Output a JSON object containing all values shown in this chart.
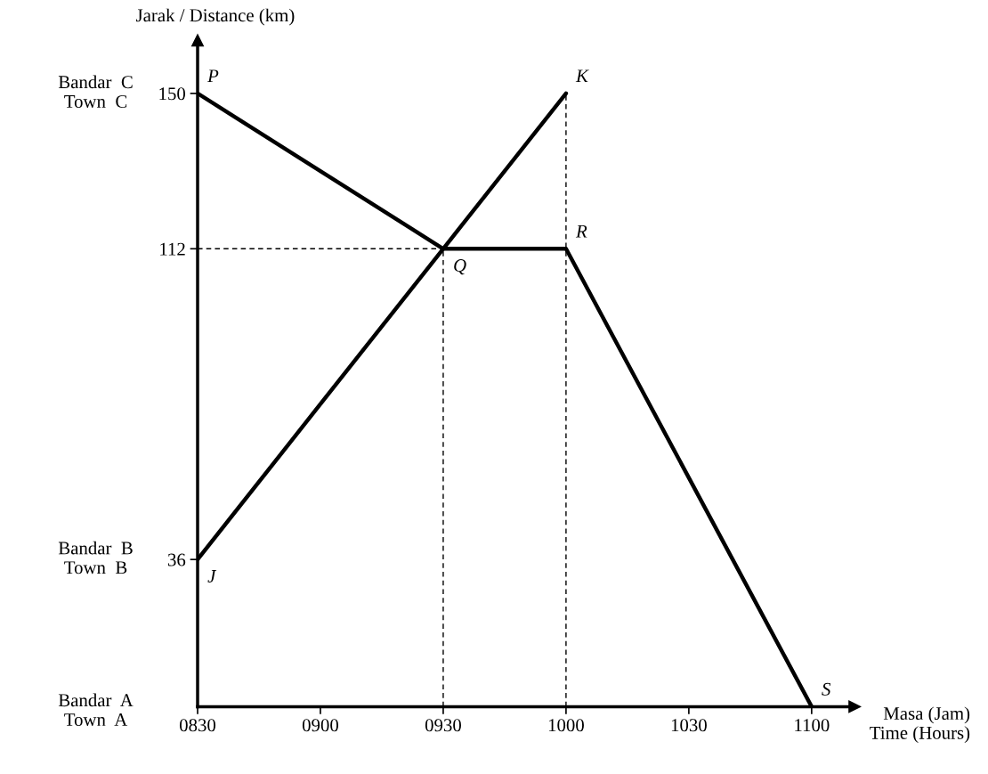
{
  "chart_data": {
    "type": "line",
    "xlabel": "Masa (Jam)\nTime (Hours)",
    "ylabel": "Jarak / Distance (km)",
    "categories": [
      "0830",
      "0900",
      "0930",
      "1000",
      "1030",
      "1100"
    ],
    "ylim": [
      0,
      163
    ],
    "yticks": [
      36,
      112,
      150
    ],
    "grid": false,
    "marker": "none",
    "line_style": "solid",
    "series": [
      {
        "color": "#000000",
        "values": [
          150,
          131,
          112,
          112,
          56,
          0
        ]
      },
      {
        "color": "#000000",
        "values": [
          36,
          74,
          112,
          150,
          null,
          null
        ]
      }
    ],
    "ref_lines": [
      {
        "axis": "y",
        "value": 112,
        "line_style": "dashed",
        "color": "#000000"
      },
      {
        "axis": "x",
        "value": "0930",
        "line_style": "dashed",
        "color": "#000000"
      },
      {
        "axis": "x",
        "value": "1000",
        "line_style": "dashed",
        "color": "#000000"
      }
    ],
    "annotations": [
      "Bandar  C\nTown  C",
      "Bandar  B\nTown  B",
      "Bandar  A\nTown  A",
      {
        "text": "P",
        "x": "0830",
        "y": 150
      },
      {
        "text": "Q",
        "x": "0930",
        "y": 112
      },
      {
        "text": "R",
        "x": "1000",
        "y": 112
      },
      {
        "text": "S",
        "x": "1100",
        "y": 0
      },
      {
        "text": "J",
        "x": "0830",
        "y": 36
      },
      {
        "text": "K",
        "x": "1000",
        "y": 150
      }
    ]
  }
}
